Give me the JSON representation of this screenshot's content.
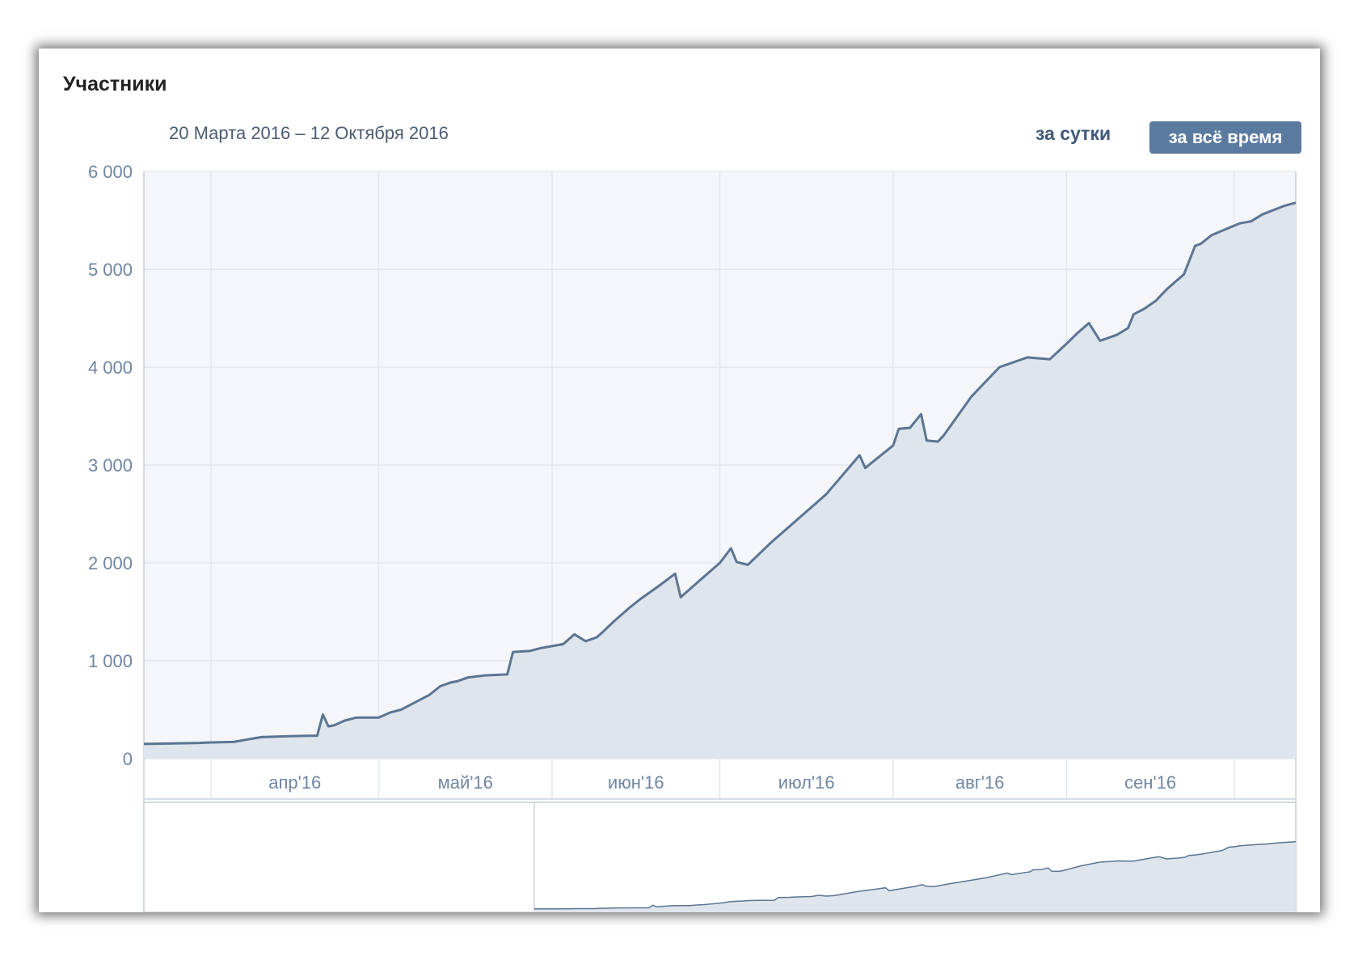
{
  "header": {
    "title": "Участники",
    "date_range": "20 Марта 2016 – 12 Октября 2016",
    "btn_day": "за сутки",
    "btn_all": "за всё время"
  },
  "colors": {
    "line": "#5b7593",
    "fill": "#dfe5ec",
    "plot_bg": "#f5f6f9",
    "grid": "#e2e6ee",
    "axis_text": "#6f86a3",
    "button_active": "#5b7a9f"
  },
  "chart_data": {
    "type": "area",
    "title": "Участники",
    "xlabel": "",
    "ylabel": "",
    "x_ticks": [
      "апр'16",
      "май'16",
      "июн'16",
      "июл'16",
      "авг'16",
      "сен'16"
    ],
    "y_ticks": [
      "0",
      "1 000",
      "2 000",
      "3 000",
      "4 000",
      "5 000",
      "6 000"
    ],
    "ylim": [
      0,
      6000
    ],
    "xlim": [
      "2016-03-20",
      "2016-10-12"
    ],
    "grid": true,
    "navigator": true,
    "series": [
      {
        "x": [
          "2016-03-20",
          "2016-03-25",
          "2016-03-30",
          "2016-04-01",
          "2016-04-05",
          "2016-04-10",
          "2016-04-15",
          "2016-04-20",
          "2016-04-21",
          "2016-04-22",
          "2016-04-23",
          "2016-04-25",
          "2016-04-27",
          "2016-05-01",
          "2016-05-03",
          "2016-05-05",
          "2016-05-10",
          "2016-05-12",
          "2016-05-14",
          "2016-05-15",
          "2016-05-17",
          "2016-05-20",
          "2016-05-24",
          "2016-05-25",
          "2016-05-28",
          "2016-05-30",
          "2016-06-01",
          "2016-06-03",
          "2016-06-05",
          "2016-06-07",
          "2016-06-09",
          "2016-06-10",
          "2016-06-12",
          "2016-06-15",
          "2016-06-17",
          "2016-06-20",
          "2016-06-23",
          "2016-06-24",
          "2016-06-28",
          "2016-07-01",
          "2016-07-03",
          "2016-07-04",
          "2016-07-06",
          "2016-07-10",
          "2016-07-20",
          "2016-07-26",
          "2016-07-27",
          "2016-08-01",
          "2016-08-02",
          "2016-08-04",
          "2016-08-06",
          "2016-08-07",
          "2016-08-09",
          "2016-08-10",
          "2016-08-15",
          "2016-08-20",
          "2016-08-25",
          "2016-08-29",
          "2016-09-01",
          "2016-09-03",
          "2016-09-05",
          "2016-09-07",
          "2016-09-10",
          "2016-09-12",
          "2016-09-13",
          "2016-09-15",
          "2016-09-17",
          "2016-09-19",
          "2016-09-22",
          "2016-09-24",
          "2016-09-25",
          "2016-09-27",
          "2016-10-02",
          "2016-10-04",
          "2016-10-06",
          "2016-10-10",
          "2016-10-12"
        ],
        "y": [
          150,
          155,
          160,
          165,
          170,
          220,
          230,
          235,
          450,
          330,
          340,
          390,
          420,
          420,
          470,
          500,
          650,
          740,
          780,
          790,
          830,
          850,
          860,
          1090,
          1100,
          1130,
          1150,
          1170,
          1270,
          1200,
          1240,
          1290,
          1400,
          1550,
          1640,
          1760,
          1890,
          1650,
          1850,
          2000,
          2150,
          2010,
          1980,
          2200,
          2700,
          3100,
          2970,
          3200,
          3370,
          3380,
          3520,
          3250,
          3240,
          3300,
          3700,
          4000,
          4100,
          4080,
          4240,
          4350,
          4450,
          4270,
          4330,
          4400,
          4540,
          4600,
          4680,
          4800,
          4950,
          5240,
          5260,
          5350,
          5470,
          5490,
          5560,
          5650,
          5680
        ]
      }
    ]
  }
}
